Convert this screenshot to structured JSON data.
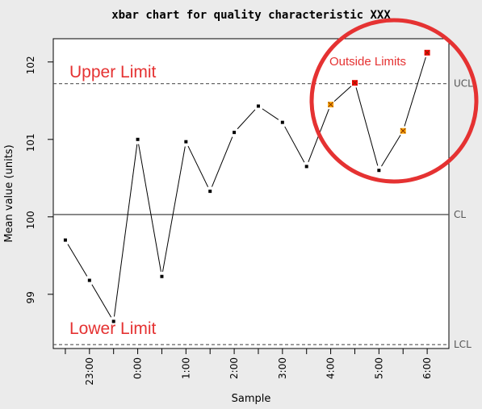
{
  "chart_data": {
    "type": "line",
    "title": "xbar chart for quality characteristic XXX",
    "xlabel": "Sample",
    "ylabel": "Mean value (units)",
    "ylim": [
      98.3,
      102.3
    ],
    "yticks": [
      99,
      100,
      101,
      102
    ],
    "x_tick_labels": [
      "23:00",
      "0:00",
      "1:00",
      "2:00",
      "3:00",
      "4:00",
      "5:00",
      "6:00"
    ],
    "x_tick_positions": [
      2,
      4,
      6,
      8,
      10,
      12,
      14,
      16
    ],
    "xlim": [
      0.5,
      16.9
    ],
    "grid": false,
    "center_line": 100.03,
    "ucl": 101.72,
    "lcl": 98.35,
    "line_labels": {
      "center": "CL",
      "upper": "UCL",
      "lower": "LCL"
    },
    "series": [
      {
        "x": [
          1,
          2,
          3,
          4,
          5,
          6,
          7,
          8,
          9,
          10,
          11,
          12,
          13,
          14,
          15,
          16
        ],
        "values": [
          99.7,
          99.18,
          98.65,
          101.0,
          99.23,
          100.97,
          100.33,
          101.09,
          101.43,
          101.22,
          100.65,
          101.45,
          101.73,
          100.6,
          101.11,
          102.12
        ],
        "status": [
          "in",
          "in",
          "in",
          "in",
          "in",
          "in",
          "in",
          "in",
          "in",
          "in",
          "in",
          "warning",
          "violation",
          "in",
          "warning",
          "violation"
        ]
      }
    ],
    "colors": {
      "in_control": "#000000",
      "warning": "#FFA500",
      "violation": "#FF0000",
      "annotation": "#E53232",
      "limit_line": "#555555",
      "background": "#EBEBEB"
    },
    "annotations": {
      "upper_limit": "Upper Limit",
      "lower_limit": "Lower Limit",
      "outside_limits": "Outside Limits"
    }
  }
}
